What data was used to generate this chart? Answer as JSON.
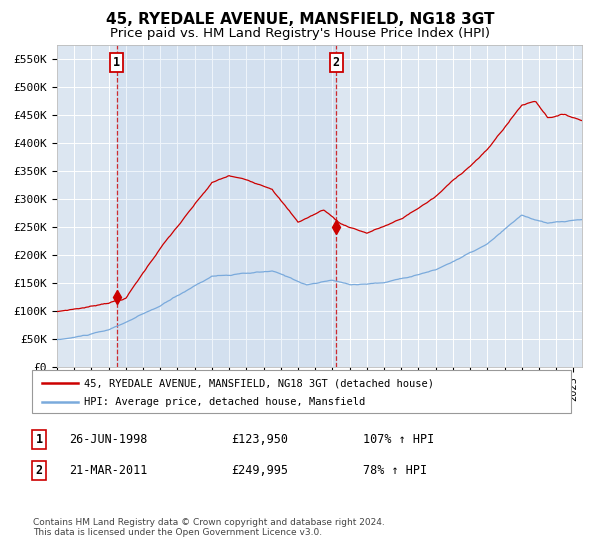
{
  "title": "45, RYEDALE AVENUE, MANSFIELD, NG18 3GT",
  "subtitle": "Price paid vs. HM Land Registry's House Price Index (HPI)",
  "ylim": [
    0,
    575000
  ],
  "yticks": [
    0,
    50000,
    100000,
    150000,
    200000,
    250000,
    300000,
    350000,
    400000,
    450000,
    500000,
    550000
  ],
  "ytick_labels": [
    "£0",
    "£50K",
    "£100K",
    "£150K",
    "£200K",
    "£250K",
    "£300K",
    "£350K",
    "£400K",
    "£450K",
    "£500K",
    "£550K"
  ],
  "xlim_start": 1995.0,
  "xlim_end": 2025.5,
  "hpi_color": "#7aaadc",
  "property_color": "#cc0000",
  "background_color": "#ffffff",
  "plot_bg_color": "#dce6f1",
  "grid_color": "#ffffff",
  "sale1_date": 1998.48,
  "sale1_price": 123950,
  "sale2_date": 2011.22,
  "sale2_price": 249995,
  "sale1_label": "1",
  "sale2_label": "2",
  "legend_line1": "45, RYEDALE AVENUE, MANSFIELD, NG18 3GT (detached house)",
  "legend_line2": "HPI: Average price, detached house, Mansfield",
  "table_row1": [
    "1",
    "26-JUN-1998",
    "£123,950",
    "107% ↑ HPI"
  ],
  "table_row2": [
    "2",
    "21-MAR-2011",
    "£249,995",
    "78% ↑ HPI"
  ],
  "footer": "Contains HM Land Registry data © Crown copyright and database right 2024.\nThis data is licensed under the Open Government Licence v3.0."
}
